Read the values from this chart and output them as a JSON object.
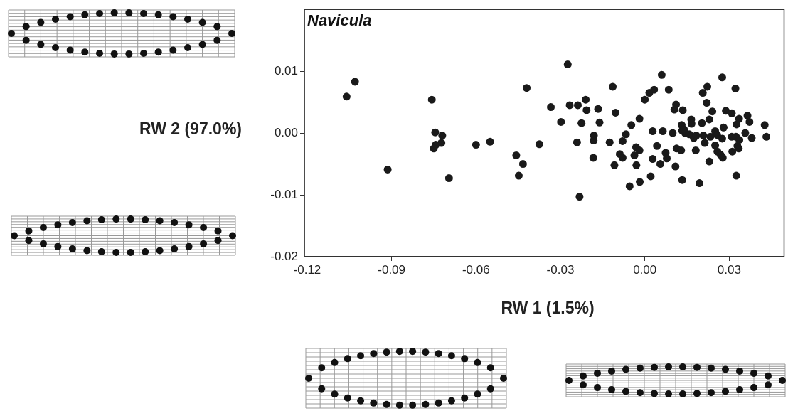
{
  "chart_data": {
    "type": "scatter",
    "title": "Navicula",
    "xlabel": "RW 1 (1.5%)",
    "ylabel": "RW 2 (97.0%)",
    "marker": "circle",
    "xlim": [
      -0.121,
      0.0495
    ],
    "ylim": [
      -0.02,
      0.02
    ],
    "xticks": [
      -0.12,
      -0.09,
      -0.06,
      -0.03,
      {
        "value": 0,
        "label": "0.00"
      },
      0.03
    ],
    "yticks": [
      -0.02,
      -0.01,
      {
        "value": 0,
        "label": "0.00"
      },
      0.01
    ],
    "series": [
      {
        "color": "#1a1a1a",
        "x": [
          -0.106,
          -0.103,
          -0.0914,
          -0.0757,
          -0.0745,
          -0.072,
          -0.0723,
          -0.0743,
          -0.075,
          -0.0696,
          -0.06,
          -0.055,
          -0.0457,
          -0.0433,
          -0.0448,
          -0.042,
          -0.0375,
          -0.0334,
          -0.0298,
          -0.0274,
          -0.0267,
          -0.0238,
          -0.021,
          -0.0207,
          -0.0225,
          -0.0241,
          -0.0232,
          -0.0166,
          -0.0161,
          -0.0181,
          -0.0182,
          -0.0183,
          -0.0125,
          -0.0114,
          -0.0104,
          -0.0108,
          -0.0079,
          -0.0067,
          -0.0048,
          -0.0019,
          -0.0089,
          -0.0079,
          -0.0031,
          -0.0019,
          -0.0037,
          -0.003,
          -0.0054,
          -0.0018,
          0.0021,
          0.0,
          0.0016,
          0.0033,
          0.006,
          0.0085,
          0.0028,
          0.0064,
          0.0043,
          0.0028,
          0.0055,
          0.0074,
          0.0078,
          0.0099,
          0.0109,
          0.0111,
          0.0105,
          0.0135,
          0.0113,
          0.0129,
          0.0133,
          0.0131,
          0.0133,
          0.0143,
          0.0165,
          0.0166,
          0.0158,
          0.0174,
          0.0181,
          0.0194,
          0.0203,
          0.0183,
          0.0208,
          0.0213,
          0.0206,
          0.0222,
          0.022,
          0.0229,
          0.024,
          0.0229,
          0.0233,
          0.025,
          0.0257,
          0.025,
          0.0258,
          0.0275,
          0.028,
          0.0275,
          0.0269,
          0.0277,
          0.0288,
          0.0309,
          0.0322,
          0.0309,
          0.0326,
          0.0335,
          0.0324,
          0.0329,
          0.0336,
          0.0311,
          0.0334,
          0.0325,
          0.0357,
          0.0365,
          0.0372,
          0.038,
          0.0426,
          0.0432,
          0.0139
        ],
        "values": [
          0.0059,
          0.0083,
          -0.0059,
          0.0054,
          0.0001,
          -0.0004,
          -0.0016,
          -0.0019,
          -0.0025,
          -0.0073,
          -0.0019,
          -0.0014,
          -0.0036,
          -0.005,
          -0.0069,
          0.0073,
          -0.0018,
          0.0042,
          0.0018,
          0.0111,
          0.0045,
          0.0045,
          0.0054,
          0.0037,
          0.0016,
          -0.0015,
          -0.0103,
          0.0039,
          0.0017,
          -0.0004,
          -0.0012,
          -0.004,
          -0.0015,
          0.0075,
          0.0033,
          -0.0052,
          -0.0013,
          -0.0002,
          0.0013,
          0.0023,
          -0.0034,
          -0.004,
          -0.0023,
          -0.0028,
          -0.0036,
          -0.0052,
          -0.0086,
          -0.0079,
          -0.007,
          0.0054,
          0.0065,
          0.007,
          0.0094,
          0.007,
          0.0003,
          0.0003,
          -0.0021,
          -0.0042,
          -0.005,
          -0.0032,
          -0.0041,
          0.0,
          -0.0054,
          0.0046,
          0.0038,
          0.0037,
          -0.0025,
          -0.0028,
          -0.0076,
          0.0013,
          0.0004,
          0.0,
          0.0022,
          0.0015,
          -0.0002,
          -0.0008,
          -0.0028,
          -0.0081,
          0.0016,
          -0.0004,
          -0.0004,
          -0.0016,
          0.0065,
          0.0075,
          0.0049,
          0.0022,
          0.0035,
          -0.0046,
          -0.0006,
          0.0003,
          -0.0003,
          -0.002,
          -0.003,
          0.009,
          0.0009,
          -0.0009,
          -0.0035,
          -0.004,
          0.0036,
          0.0032,
          0.0072,
          -0.0006,
          0.0014,
          0.0023,
          -0.0006,
          -0.0021,
          -0.0011,
          -0.003,
          -0.0025,
          -0.0069,
          0.0,
          0.0028,
          0.0018,
          -0.0008,
          0.0013,
          -0.0006,
          0.0006
        ]
      }
    ]
  }
}
